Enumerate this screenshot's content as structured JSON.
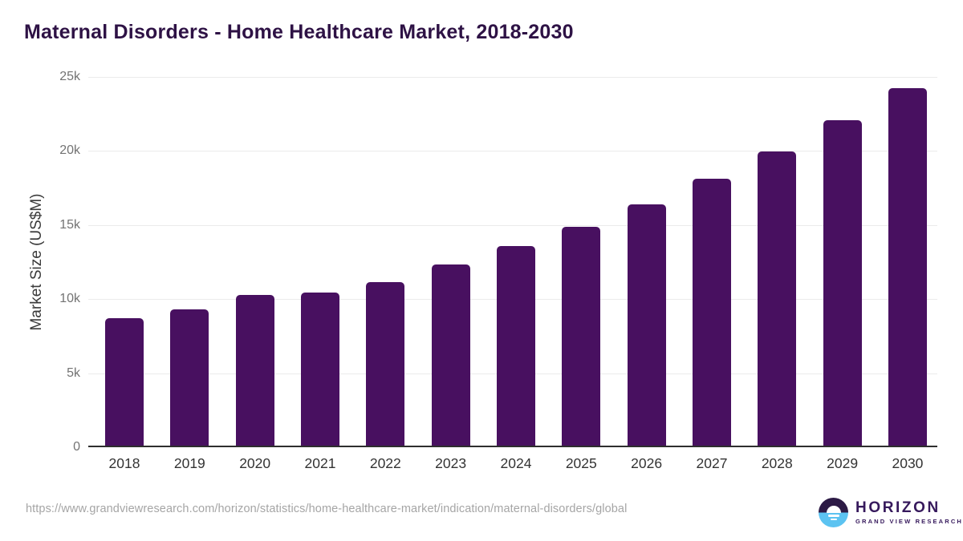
{
  "title": "Maternal Disorders - Home Healthcare Market, 2018-2030",
  "chart_data": {
    "type": "bar",
    "title": "Maternal Disorders - Home Healthcare Market, 2018-2030",
    "categories": [
      "2018",
      "2019",
      "2020",
      "2021",
      "2022",
      "2023",
      "2024",
      "2025",
      "2026",
      "2027",
      "2028",
      "2029",
      "2030"
    ],
    "values": [
      8600,
      9200,
      10150,
      10350,
      11050,
      12250,
      13450,
      14800,
      16300,
      18000,
      19850,
      21950,
      24150
    ],
    "xlabel": "",
    "ylabel": "Market Size (US$M)",
    "ylim": [
      0,
      25000
    ],
    "ytick_labels": [
      "25k",
      "20k",
      "15k",
      "10k",
      "5k",
      "0"
    ],
    "ytick_values": [
      25000,
      20000,
      15000,
      10000,
      5000,
      0
    ],
    "grid": true,
    "legend": false,
    "bar_color": "#481060",
    "units": "US$M"
  },
  "footer": {
    "source_url": "https://www.grandviewresearch.com/horizon/statistics/home-healthcare-market/indication/maternal-disorders/global",
    "logo": {
      "brand": "HORIZON",
      "subtitle": "GRAND VIEW RESEARCH",
      "icon": "sun-over-water-icon",
      "purple": "#2c1a45",
      "blue": "#5cc3f1"
    }
  }
}
